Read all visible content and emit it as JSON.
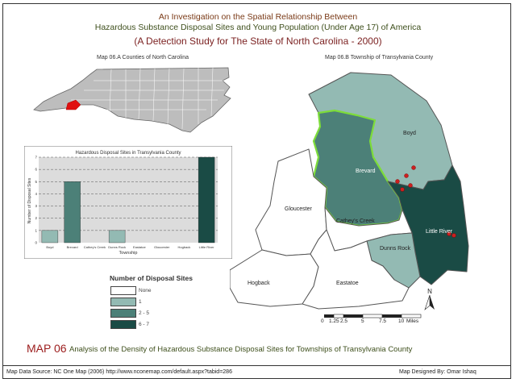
{
  "header": {
    "title_line1": "An Investigation on the Spatial Relationship Between",
    "title_line2": "Hazardous Substance Disposal Sites and Young Population (Under Age 17) of America",
    "subtitle": "(A Detection Study for The State of North Carolina - 2000)"
  },
  "nc_inset": {
    "label": "Map 06.A Counties of North Carolina"
  },
  "transylvania_map": {
    "label": "Map 06.B Township of Transylvania County",
    "townships": [
      {
        "name": "Boyd",
        "class": "1"
      },
      {
        "name": "Brevard",
        "class": "5"
      },
      {
        "name": "Gloucester",
        "class": "None"
      },
      {
        "name": "Cathey's Creek",
        "class": "None"
      },
      {
        "name": "Little River",
        "class": "7"
      },
      {
        "name": "Dunns Rock",
        "class": "1"
      },
      {
        "name": "Hogback",
        "class": "None"
      },
      {
        "name": "Eastatoe",
        "class": "None"
      }
    ]
  },
  "chart_data": {
    "type": "bar",
    "title": "Hazardous Disposal Sites in Transylvania County",
    "xlabel": "Township",
    "ylabel": "Number of Disposal Sites",
    "categories": [
      "Boyd",
      "Brevard",
      "Cathey's Creek",
      "Dunns Rock",
      "Eastatoe",
      "Gloucester",
      "Hogback",
      "Little River"
    ],
    "values": [
      1,
      5,
      0,
      1,
      0,
      0,
      0,
      7
    ],
    "ylim": [
      0,
      7
    ],
    "yticks": [
      "0",
      "1",
      "2",
      "3",
      "4",
      "5",
      "6",
      "7"
    ],
    "grid": true
  },
  "legend": {
    "title": "Number of Disposal Sites",
    "items": [
      {
        "label": "None",
        "color": "#ffffff"
      },
      {
        "label": "1",
        "color": "#93bab3"
      },
      {
        "label": "2 - 5",
        "color": "#4c8078"
      },
      {
        "label": "6 - 7",
        "color": "#1a4b45"
      }
    ]
  },
  "scale_bar": {
    "ticks": [
      "0",
      "1.25",
      "2.5",
      "5",
      "7.5",
      "10"
    ],
    "unit": "Miles"
  },
  "north_arrow": {
    "label": "N"
  },
  "footer": {
    "map_id": "MAP 06",
    "map_description": "Analysis of the Density of Hazardous Substance Disposal Sites for Townships of Transylvania County",
    "source": "Map Data Source: NC One Map (2006) http://www.nconemap.com/default.aspx?tabid=286",
    "designer": "Map Designed By: Omar Ishaq"
  },
  "colors": {
    "none": "#ffffff",
    "low": "#93bab3",
    "mid": "#4c8078",
    "high": "#1a4b45",
    "highlight": "#7ddc3a",
    "site": "#cc1f1f",
    "nc_county": "#bdbdbd",
    "nc_highlight": "#e01010"
  }
}
